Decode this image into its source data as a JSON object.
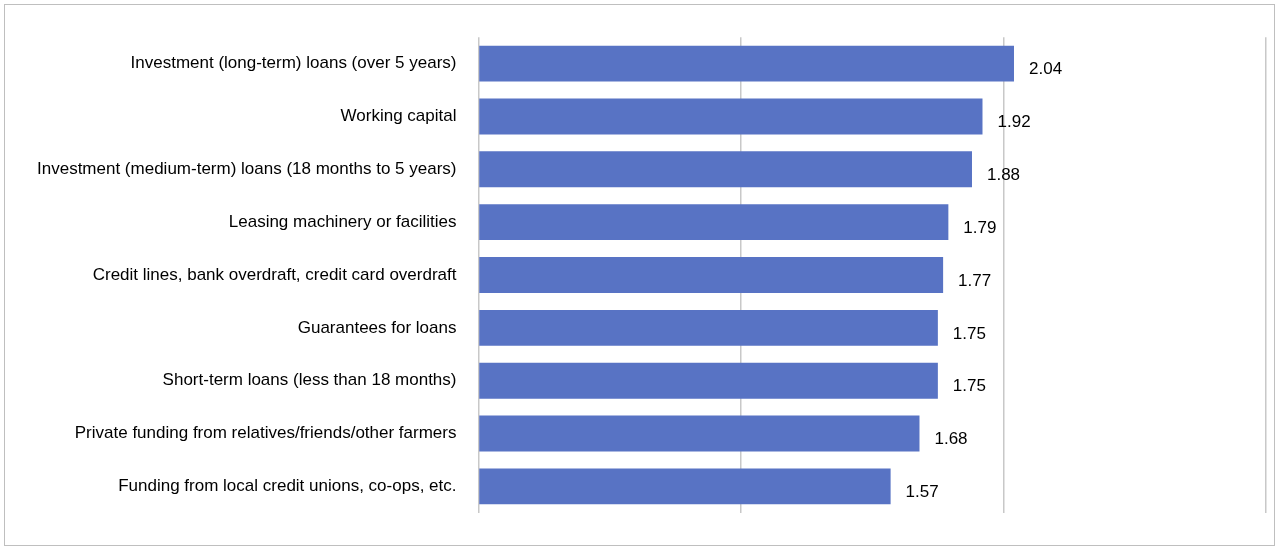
{
  "chart_data": {
    "type": "bar",
    "orientation": "horizontal",
    "categories": [
      "Investment (long-term) loans (over 5 years)",
      "Working capital",
      "Investment (medium-term) loans (18 months to 5 years)",
      "Leasing machinery or facilities",
      "Credit lines, bank overdraft, credit card overdraft",
      "Guarantees for loans",
      "Short-term loans (less than 18 months)",
      "Private funding from relatives/friends/other farmers",
      "Funding from local credit unions, co-ops, etc."
    ],
    "values": [
      2.04,
      1.92,
      1.88,
      1.79,
      1.77,
      1.75,
      1.75,
      1.68,
      1.57
    ],
    "color": "#5873c4",
    "xlim": [
      0,
      3
    ],
    "xticks": [
      {
        "value": 0,
        "label": null
      },
      {
        "value": 1,
        "label": null
      },
      {
        "value": 2,
        "label": null
      },
      {
        "value": 3,
        "label": null
      }
    ],
    "tick_labels": "y",
    "grid": "x",
    "data_labels": true,
    "legend": false
  }
}
